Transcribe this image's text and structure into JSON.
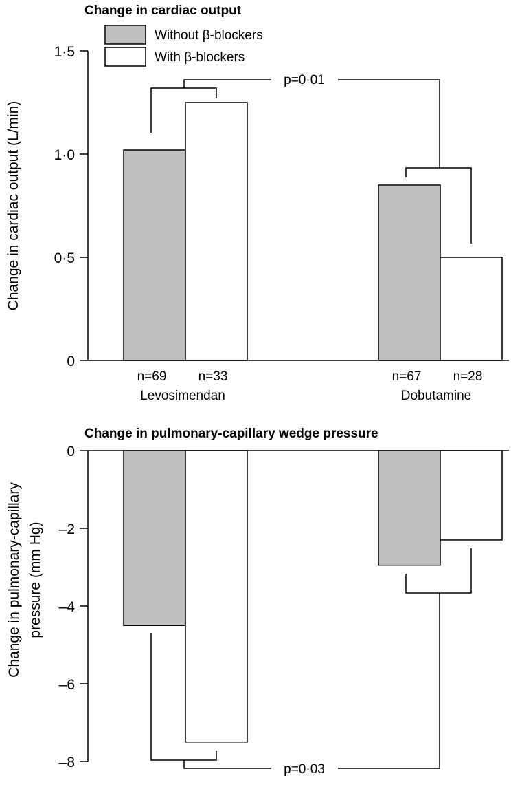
{
  "chart_data": [
    {
      "type": "bar",
      "title": "Change in cardiac output",
      "ylabel": "Change in cardiac output (L/min)",
      "ylim": [
        0,
        1.5
      ],
      "yticks": [
        "0",
        "0·5",
        "1·0",
        "1·5"
      ],
      "yticks_values": [
        0,
        0.5,
        1.0,
        1.5
      ],
      "categories": [
        "Levosimendan",
        "Dobutamine"
      ],
      "series": [
        {
          "name": "Without β-blockers",
          "color": "#c0c0c0",
          "values": [
            1.02,
            0.85
          ],
          "n_labels": [
            "n=69",
            "n=67"
          ]
        },
        {
          "name": "With β-blockers",
          "color": "#ffffff",
          "values": [
            1.25,
            0.5
          ],
          "n_labels": [
            "n=33",
            "n=28"
          ]
        }
      ],
      "annotation": "p=0·01",
      "legend": "top-left"
    },
    {
      "type": "bar",
      "title": "Change in pulmonary-capillary wedge pressure",
      "ylabel_line1": "Change in pulmonary-capillary",
      "ylabel_line2": "pressure (mm Hg)",
      "ylim": [
        -8,
        0
      ],
      "yticks": [
        "0",
        "–2",
        "–4",
        "–6",
        "–8"
      ],
      "yticks_values": [
        0,
        -2,
        -4,
        -6,
        -8
      ],
      "categories": [
        "Levosimendan",
        "Dobutamine"
      ],
      "series": [
        {
          "name": "Without β-blockers",
          "color": "#c0c0c0",
          "values": [
            -4.5,
            -2.95
          ]
        },
        {
          "name": "With β-blockers",
          "color": "#ffffff",
          "values": [
            -7.5,
            -2.3
          ]
        }
      ],
      "annotation": "p=0·03"
    }
  ]
}
